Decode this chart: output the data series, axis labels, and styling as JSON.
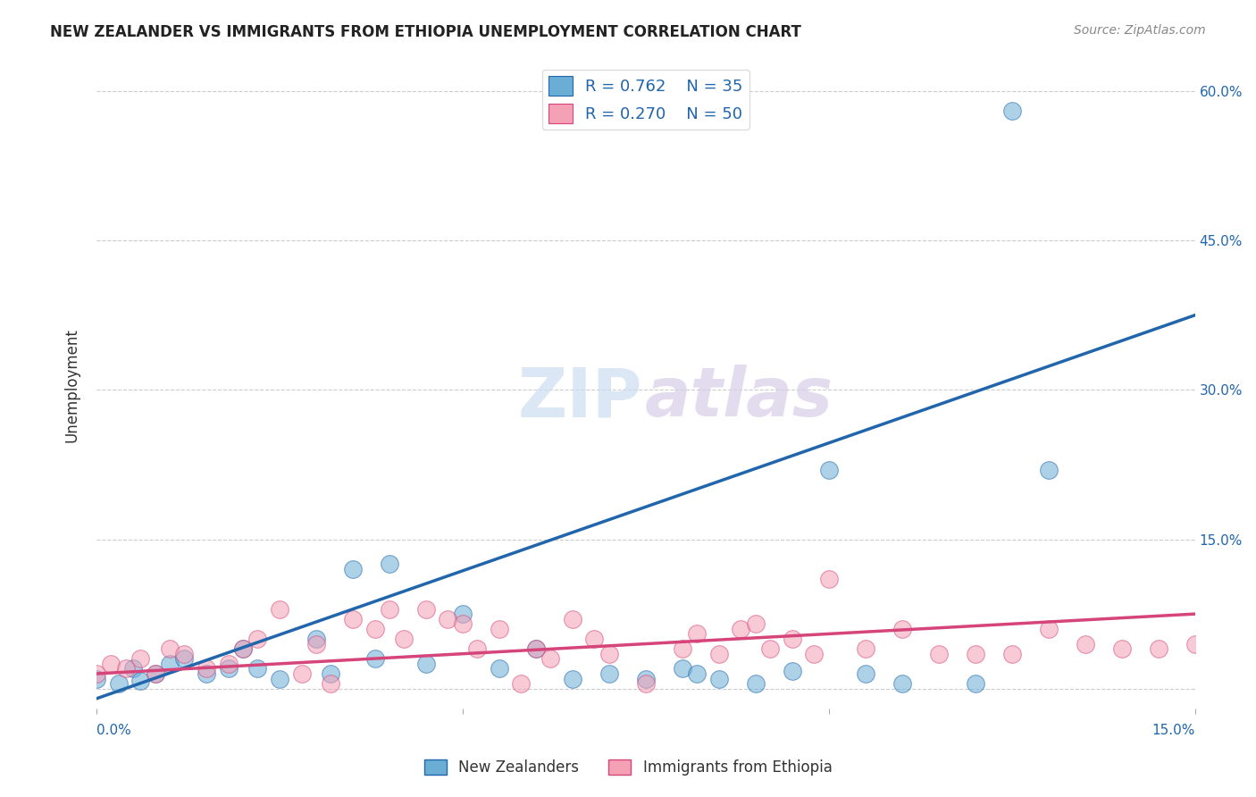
{
  "title": "NEW ZEALANDER VS IMMIGRANTS FROM ETHIOPIA UNEMPLOYMENT CORRELATION CHART",
  "source": "Source: ZipAtlas.com",
  "ylabel": "Unemployment",
  "y_ticks": [
    0.0,
    0.15,
    0.3,
    0.45,
    0.6
  ],
  "y_tick_labels": [
    "",
    "15.0%",
    "30.0%",
    "45.0%",
    "60.0%"
  ],
  "x_range": [
    0.0,
    0.15
  ],
  "y_range": [
    -0.02,
    0.63
  ],
  "legend_r1": "R = 0.762",
  "legend_n1": "N = 35",
  "legend_r2": "R = 0.270",
  "legend_n2": "N = 50",
  "blue_color": "#6aaed6",
  "blue_line_color": "#2166ac",
  "pink_color": "#f4a0b5",
  "pink_line_color": "#d6457a",
  "scatter_blue": [
    [
      0.0,
      0.01
    ],
    [
      0.005,
      0.02
    ],
    [
      0.008,
      0.015
    ],
    [
      0.01,
      0.025
    ],
    [
      0.012,
      0.03
    ],
    [
      0.015,
      0.015
    ],
    [
      0.018,
      0.02
    ],
    [
      0.02,
      0.04
    ],
    [
      0.022,
      0.02
    ],
    [
      0.025,
      0.01
    ],
    [
      0.03,
      0.05
    ],
    [
      0.032,
      0.015
    ],
    [
      0.035,
      0.12
    ],
    [
      0.038,
      0.03
    ],
    [
      0.04,
      0.125
    ],
    [
      0.045,
      0.025
    ],
    [
      0.05,
      0.075
    ],
    [
      0.055,
      0.02
    ],
    [
      0.06,
      0.04
    ],
    [
      0.065,
      0.01
    ],
    [
      0.07,
      0.015
    ],
    [
      0.075,
      0.01
    ],
    [
      0.08,
      0.02
    ],
    [
      0.082,
      0.015
    ],
    [
      0.085,
      0.01
    ],
    [
      0.09,
      0.005
    ],
    [
      0.095,
      0.018
    ],
    [
      0.1,
      0.22
    ],
    [
      0.105,
      0.015
    ],
    [
      0.11,
      0.005
    ],
    [
      0.12,
      0.005
    ],
    [
      0.125,
      0.58
    ],
    [
      0.13,
      0.22
    ],
    [
      0.003,
      0.005
    ],
    [
      0.006,
      0.008
    ]
  ],
  "scatter_pink": [
    [
      0.0,
      0.015
    ],
    [
      0.002,
      0.025
    ],
    [
      0.004,
      0.02
    ],
    [
      0.006,
      0.03
    ],
    [
      0.008,
      0.015
    ],
    [
      0.01,
      0.04
    ],
    [
      0.012,
      0.035
    ],
    [
      0.015,
      0.02
    ],
    [
      0.018,
      0.025
    ],
    [
      0.02,
      0.04
    ],
    [
      0.022,
      0.05
    ],
    [
      0.025,
      0.08
    ],
    [
      0.028,
      0.015
    ],
    [
      0.03,
      0.045
    ],
    [
      0.032,
      0.005
    ],
    [
      0.035,
      0.07
    ],
    [
      0.038,
      0.06
    ],
    [
      0.04,
      0.08
    ],
    [
      0.042,
      0.05
    ],
    [
      0.045,
      0.08
    ],
    [
      0.048,
      0.07
    ],
    [
      0.05,
      0.065
    ],
    [
      0.052,
      0.04
    ],
    [
      0.055,
      0.06
    ],
    [
      0.058,
      0.005
    ],
    [
      0.06,
      0.04
    ],
    [
      0.062,
      0.03
    ],
    [
      0.065,
      0.07
    ],
    [
      0.068,
      0.05
    ],
    [
      0.07,
      0.035
    ],
    [
      0.075,
      0.005
    ],
    [
      0.08,
      0.04
    ],
    [
      0.082,
      0.055
    ],
    [
      0.085,
      0.035
    ],
    [
      0.088,
      0.06
    ],
    [
      0.09,
      0.065
    ],
    [
      0.092,
      0.04
    ],
    [
      0.095,
      0.05
    ],
    [
      0.098,
      0.035
    ],
    [
      0.1,
      0.11
    ],
    [
      0.105,
      0.04
    ],
    [
      0.11,
      0.06
    ],
    [
      0.115,
      0.035
    ],
    [
      0.12,
      0.035
    ],
    [
      0.125,
      0.035
    ],
    [
      0.13,
      0.06
    ],
    [
      0.135,
      0.045
    ],
    [
      0.14,
      0.04
    ],
    [
      0.145,
      0.04
    ],
    [
      0.15,
      0.045
    ]
  ],
  "blue_line": [
    [
      0.0,
      -0.01
    ],
    [
      0.15,
      0.375
    ]
  ],
  "pink_line": [
    [
      0.0,
      0.015
    ],
    [
      0.15,
      0.075
    ]
  ],
  "background_color": "#ffffff",
  "grid_color": "#cccccc"
}
